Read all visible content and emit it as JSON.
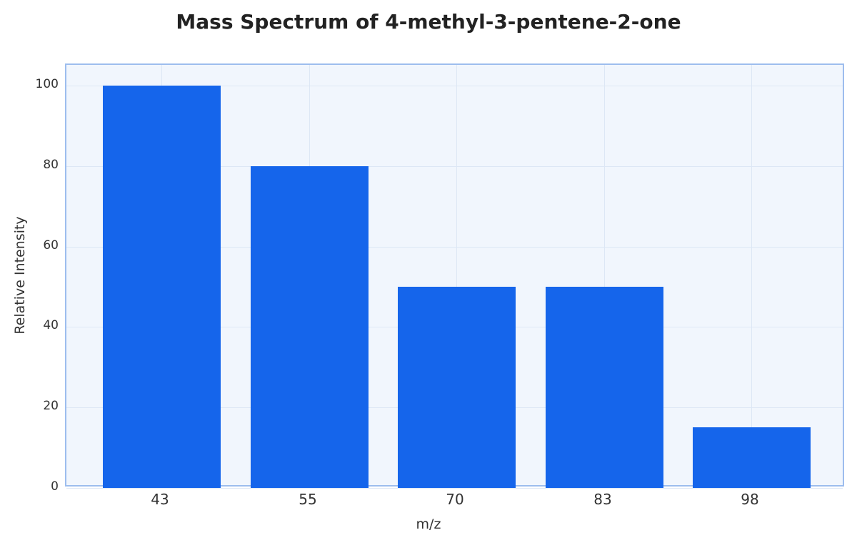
{
  "chart_data": {
    "type": "bar",
    "title": "Mass Spectrum of 4-methyl-3-pentene-2-one",
    "xlabel": "m/z",
    "ylabel": "Relative Intensity",
    "categories": [
      "43",
      "55",
      "70",
      "83",
      "98"
    ],
    "values": [
      100,
      80,
      50,
      50,
      15
    ],
    "ylim": [
      0,
      105
    ],
    "yticks": [
      "0",
      "20",
      "40",
      "60",
      "80",
      "100"
    ],
    "grid": true,
    "legend": null,
    "colors": {
      "bar": "#1565eb",
      "plot_bg": "#f1f6fd",
      "border": "#9dbdee",
      "grid": "#dde7f5"
    }
  }
}
